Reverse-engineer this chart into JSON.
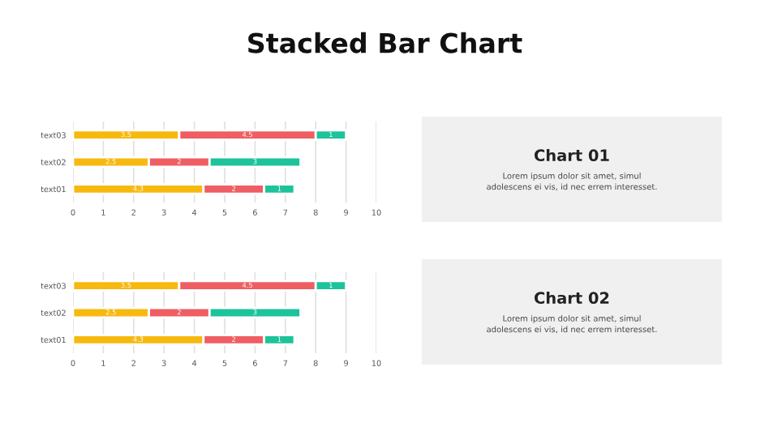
{
  "chart_data": [
    {
      "type": "bar",
      "title": "Stacked Bar Chart",
      "orientation": "horizontal",
      "stacked": true,
      "categories": [
        "text03",
        "text02",
        "text01"
      ],
      "series": [
        {
          "color": "#f7b90f",
          "values": [
            3.5,
            2.5,
            4.3
          ],
          "value_labels": [
            "3.5",
            "2.5",
            "4.3"
          ]
        },
        {
          "color": "#ee5e63",
          "values": [
            4.5,
            2.0,
            2.0
          ],
          "value_labels": [
            "4.5",
            "2",
            "2"
          ]
        },
        {
          "color": "#1dc39b",
          "values": [
            1.0,
            3.0,
            1.0
          ],
          "value_labels": [
            "1",
            "3",
            "1"
          ]
        }
      ],
      "xlim": [
        0,
        10
      ],
      "xticks": [
        0,
        1,
        2,
        3,
        4,
        5,
        6,
        7,
        8,
        9,
        10
      ],
      "grid": "x"
    },
    {
      "type": "other",
      "title": "Chart 01",
      "annotations": [
        "Lorem ipsum dolor sit amet, simul\nadolescens ei vis, id nec errem interesset."
      ]
    },
    {
      "type": "bar",
      "orientation": "horizontal",
      "stacked": true,
      "categories": [
        "text03",
        "text02",
        "text01"
      ],
      "series": [
        {
          "color": "#f7b90f",
          "values": [
            3.5,
            2.5,
            4.3
          ],
          "value_labels": [
            "3.5",
            "2.5",
            "4.3"
          ]
        },
        {
          "color": "#ee5e63",
          "values": [
            4.5,
            2.0,
            2.0
          ],
          "value_labels": [
            "4.5",
            "2",
            "2"
          ]
        },
        {
          "color": "#1dc39b",
          "values": [
            1.0,
            3.0,
            1.0
          ],
          "value_labels": [
            "1",
            "3",
            "1"
          ]
        }
      ],
      "xlim": [
        0,
        10
      ],
      "xticks": [
        0,
        1,
        2,
        3,
        4,
        5,
        6,
        7,
        8,
        9,
        10
      ],
      "grid": "x"
    },
    {
      "type": "other",
      "title": "Chart 02",
      "annotations": [
        "Lorem ipsum dolor sit amet, simul\nadolescens ei vis, id nec errem interesset."
      ]
    }
  ]
}
